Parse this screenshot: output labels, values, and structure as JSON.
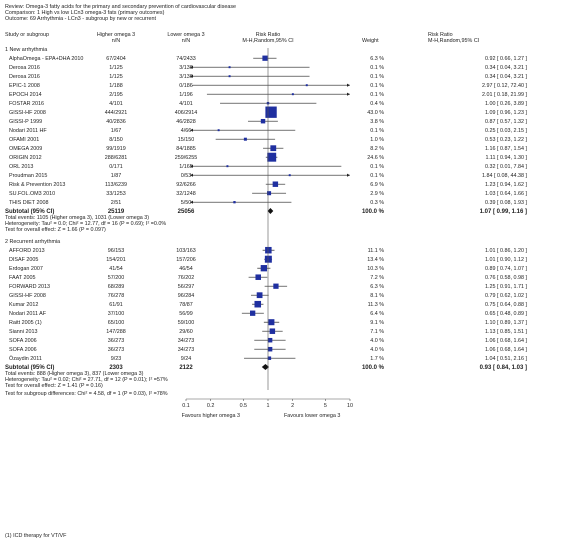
{
  "header": {
    "review": "Review: Omega-3 fatty acids for the primary and secondary prevention of cardiovascular disease",
    "comparison": "Comparison: 1 High vs low LCn3 omega-3 fats (primary outcomes)",
    "outcome": "Outcome: 69 Arrhythmia - LCn3 - subgroup by new or recurrent"
  },
  "columns": {
    "study": "Study or subgroup",
    "exp": "Higher omega 3",
    "ctl": "Lower omega 3",
    "n_sub": "n/N",
    "rr": "Risk Ratio",
    "rr_sub": "M-H,Random,95% CI",
    "weight": "Weight",
    "rr_ci": "Risk Ratio",
    "rr_ci_sub": "M-H,Random,95% CI"
  },
  "colors": {
    "marker": "#1f2fa0",
    "line": "#222222",
    "axis": "#555555"
  },
  "chart_data": {
    "type": "forest",
    "scale": "log",
    "xlim": [
      0.1,
      10
    ],
    "ticks": [
      0.1,
      0.2,
      0.5,
      1,
      2,
      5,
      10
    ],
    "tick_labels": [
      "0.1",
      "0.2",
      "0.5",
      "1",
      "2",
      "5",
      "10"
    ],
    "favours_left": "Favours higher omega 3",
    "favours_right": "Favours lower omega 3",
    "groups": [
      {
        "title": "1 New arrhythmia",
        "studies": [
          {
            "name": "AlphaOmega - EPA+DHA 2010",
            "exp": "67/2404",
            "ctl": "74/2433",
            "weight": "6.3 %",
            "ci": "0.92 [ 0.66, 1.27 ]",
            "rr": 0.92,
            "lo": 0.66,
            "hi": 1.27
          },
          {
            "name": "Derosa 2016",
            "exp": "1/125",
            "ctl": "3/130",
            "weight": "0.1 %",
            "ci": "0.34 [ 0.04, 3.21 ]",
            "rr": 0.34,
            "lo": 0.04,
            "hi": 3.21
          },
          {
            "name": "Derosa 2016",
            "exp": "1/125",
            "ctl": "3/130",
            "weight": "0.1 %",
            "ci": "0.34 [ 0.04, 3.21 ]",
            "rr": 0.34,
            "lo": 0.04,
            "hi": 3.21
          },
          {
            "name": "EPIC-1 2008",
            "exp": "1/188",
            "ctl": "0/186",
            "weight": "0.1 %",
            "ci": "2.97 [ 0.12, 72.40 ]",
            "rr": 2.97,
            "lo": 0.12,
            "hi": 72.4
          },
          {
            "name": "EPOCH 2014",
            "exp": "2/195",
            "ctl": "1/196",
            "weight": "0.1 %",
            "ci": "2.01 [ 0.18, 21.99 ]",
            "rr": 2.01,
            "lo": 0.18,
            "hi": 21.99
          },
          {
            "name": "FOSTAR 2016",
            "exp": "4/101",
            "ctl": "4/101",
            "weight": "0.4 %",
            "ci": "1.00 [ 0.26, 3.89 ]",
            "rr": 1.0,
            "lo": 0.26,
            "hi": 3.89
          },
          {
            "name": "GISSI-HF 2008",
            "exp": "444/2921",
            "ctl": "406/2914",
            "weight": "43.0 %",
            "ci": "1.09 [ 0.96, 1.23 ]",
            "rr": 1.09,
            "lo": 0.96,
            "hi": 1.23
          },
          {
            "name": "GISSI-P 1999",
            "exp": "40/2836",
            "ctl": "46/2828",
            "weight": "3.8 %",
            "ci": "0.87 [ 0.57, 1.32 ]",
            "rr": 0.87,
            "lo": 0.57,
            "hi": 1.32
          },
          {
            "name": "Nodari 2011 HF",
            "exp": "1/67",
            "ctl": "4/66",
            "weight": "0.1 %",
            "ci": "0.25 [ 0.03, 2.15 ]",
            "rr": 0.25,
            "lo": 0.03,
            "hi": 2.15
          },
          {
            "name": "OFAMI 2001",
            "exp": "8/150",
            "ctl": "15/150",
            "weight": "1.0 %",
            "ci": "0.53 [ 0.23, 1.22 ]",
            "rr": 0.53,
            "lo": 0.23,
            "hi": 1.22
          },
          {
            "name": "OMEGA 2009",
            "exp": "99/1919",
            "ctl": "84/1885",
            "weight": "8.2 %",
            "ci": "1.16 [ 0.87, 1.54 ]",
            "rr": 1.16,
            "lo": 0.87,
            "hi": 1.54
          },
          {
            "name": "ORIGIN 2012",
            "exp": "288/6281",
            "ctl": "259/6255",
            "weight": "24.6 %",
            "ci": "1.11 [ 0.94, 1.30 ]",
            "rr": 1.11,
            "lo": 0.94,
            "hi": 1.3
          },
          {
            "name": "ORL 2013",
            "exp": "0/171",
            "ctl": "1/165",
            "weight": "0.1 %",
            "ci": "0.32 [ 0.01, 7.84 ]",
            "rr": 0.32,
            "lo": 0.01,
            "hi": 7.84
          },
          {
            "name": "Proudman 2015",
            "exp": "1/87",
            "ctl": "0/53",
            "weight": "0.1 %",
            "ci": "1.84 [ 0.08, 44.38 ]",
            "rr": 1.84,
            "lo": 0.08,
            "hi": 44.38
          },
          {
            "name": "Risk & Prevention 2013",
            "exp": "113/6239",
            "ctl": "92/6266",
            "weight": "6.9 %",
            "ci": "1.23 [ 0.94, 1.62 ]",
            "rr": 1.23,
            "lo": 0.94,
            "hi": 1.62
          },
          {
            "name": "SU.FOL.OM3 2010",
            "exp": "33/1253",
            "ctl": "32/1248",
            "weight": "2.9 %",
            "ci": "1.03 [ 0.64, 1.66 ]",
            "rr": 1.03,
            "lo": 0.64,
            "hi": 1.66
          },
          {
            "name": "THIS DIET 2008",
            "exp": "2/51",
            "ctl": "5/50",
            "weight": "0.3 %",
            "ci": "0.39 [ 0.08, 1.93 ]",
            "rr": 0.39,
            "lo": 0.08,
            "hi": 1.93
          }
        ],
        "subtotal": {
          "label": "Subtotal (95% CI)",
          "exp_n": "25119",
          "ctl_n": "25056",
          "weight": "100.0 %",
          "ci": "1.07 [ 0.99, 1.16 ]",
          "rr": 1.07,
          "lo": 0.99,
          "hi": 1.16
        },
        "stats": [
          "Total events: 1105 (Higher omega 3), 1031 (Lower omega 3)",
          "Heterogeneity: Tau² = 0.0; Chi² = 12.77, df = 16 (P = 0.69); I² =0.0%",
          "Test for overall effect: Z = 1.66 (P = 0.097)"
        ]
      },
      {
        "title": "2 Recurrent arrhythmia",
        "studies": [
          {
            "name": "AFFORD 2013",
            "exp": "96/153",
            "ctl": "103/163",
            "weight": "11.1 %",
            "ci": "1.01 [ 0.86, 1.20 ]",
            "rr": 1.01,
            "lo": 0.86,
            "hi": 1.2
          },
          {
            "name": "DISAF 2005",
            "exp": "154/201",
            "ctl": "157/206",
            "weight": "13.4 %",
            "ci": "1.01 [ 0.90, 1.12 ]",
            "rr": 1.01,
            "lo": 0.9,
            "hi": 1.12
          },
          {
            "name": "Erdogan 2007",
            "exp": "41/54",
            "ctl": "46/54",
            "weight": "10.3 %",
            "ci": "0.89 [ 0.74, 1.07 ]",
            "rr": 0.89,
            "lo": 0.74,
            "hi": 1.07
          },
          {
            "name": "FAAT 2005",
            "exp": "57/200",
            "ctl": "76/202",
            "weight": "7.2 %",
            "ci": "0.76 [ 0.58, 0.98 ]",
            "rr": 0.76,
            "lo": 0.58,
            "hi": 0.98
          },
          {
            "name": "FORWARD 2013",
            "exp": "68/289",
            "ctl": "56/297",
            "weight": "6.3 %",
            "ci": "1.25 [ 0.91, 1.71 ]",
            "rr": 1.25,
            "lo": 0.91,
            "hi": 1.71
          },
          {
            "name": "GISSI-HF 2008",
            "exp": "76/278",
            "ctl": "96/284",
            "weight": "8.1 %",
            "ci": "0.79 [ 0.62, 1.02 ]",
            "rr": 0.79,
            "lo": 0.62,
            "hi": 1.02
          },
          {
            "name": "Kumar 2012",
            "exp": "61/91",
            "ctl": "78/87",
            "weight": "11.3 %",
            "ci": "0.75 [ 0.64, 0.88 ]",
            "rr": 0.75,
            "lo": 0.64,
            "hi": 0.88
          },
          {
            "name": "Nodari 2011 AF",
            "exp": "37/100",
            "ctl": "56/99",
            "weight": "6.4 %",
            "ci": "0.65 [ 0.48, 0.89 ]",
            "rr": 0.65,
            "lo": 0.48,
            "hi": 0.89
          },
          {
            "name": "Raitt 2005 (1)",
            "exp": "65/100",
            "ctl": "59/100",
            "weight": "9.1 %",
            "ci": "1.10 [ 0.89, 1.37 ]",
            "rr": 1.1,
            "lo": 0.89,
            "hi": 1.37
          },
          {
            "name": "Sianni 2013",
            "exp": "147/288",
            "ctl": "29/60",
            "weight": "7.1 %",
            "ci": "1.13 [ 0.85, 1.51 ]",
            "rr": 1.13,
            "lo": 0.85,
            "hi": 1.51
          },
          {
            "name": "SOFA 2006",
            "exp": "36/273",
            "ctl": "34/273",
            "weight": "4.0 %",
            "ci": "1.06 [ 0.68, 1.64 ]",
            "rr": 1.06,
            "lo": 0.68,
            "hi": 1.64
          },
          {
            "name": "SOFA 2006",
            "exp": "36/273",
            "ctl": "34/273",
            "weight": "4.0 %",
            "ci": "1.06 [ 0.68, 1.64 ]",
            "rr": 1.06,
            "lo": 0.68,
            "hi": 1.64
          },
          {
            "name": "Özaydin 2011",
            "exp": "9/23",
            "ctl": "9/24",
            "weight": "1.7 %",
            "ci": "1.04 [ 0.51, 2.16 ]",
            "rr": 1.04,
            "lo": 0.51,
            "hi": 2.16
          }
        ],
        "subtotal": {
          "label": "Subtotal (95% CI)",
          "exp_n": "2303",
          "ctl_n": "2122",
          "weight": "100.0 %",
          "ci": "0.93 [ 0.84, 1.03 ]",
          "rr": 0.93,
          "lo": 0.84,
          "hi": 1.03
        },
        "stats": [
          "Total events: 888 (Higher omega 3), 837 (Lower omega 3)",
          "Heterogeneity: Tau² = 0.02; Chi² = 27.71, df = 12 (P = 0.01); I² =57%",
          "Test for overall effect: Z = 1.41 (P = 0.16)"
        ]
      }
    ],
    "subgroup_test": "Test for subgroup differences: Chi² = 4.58, df = 1 (P = 0.03), I² =78%",
    "footnote": "(1) ICD therapy for VT/VF"
  }
}
